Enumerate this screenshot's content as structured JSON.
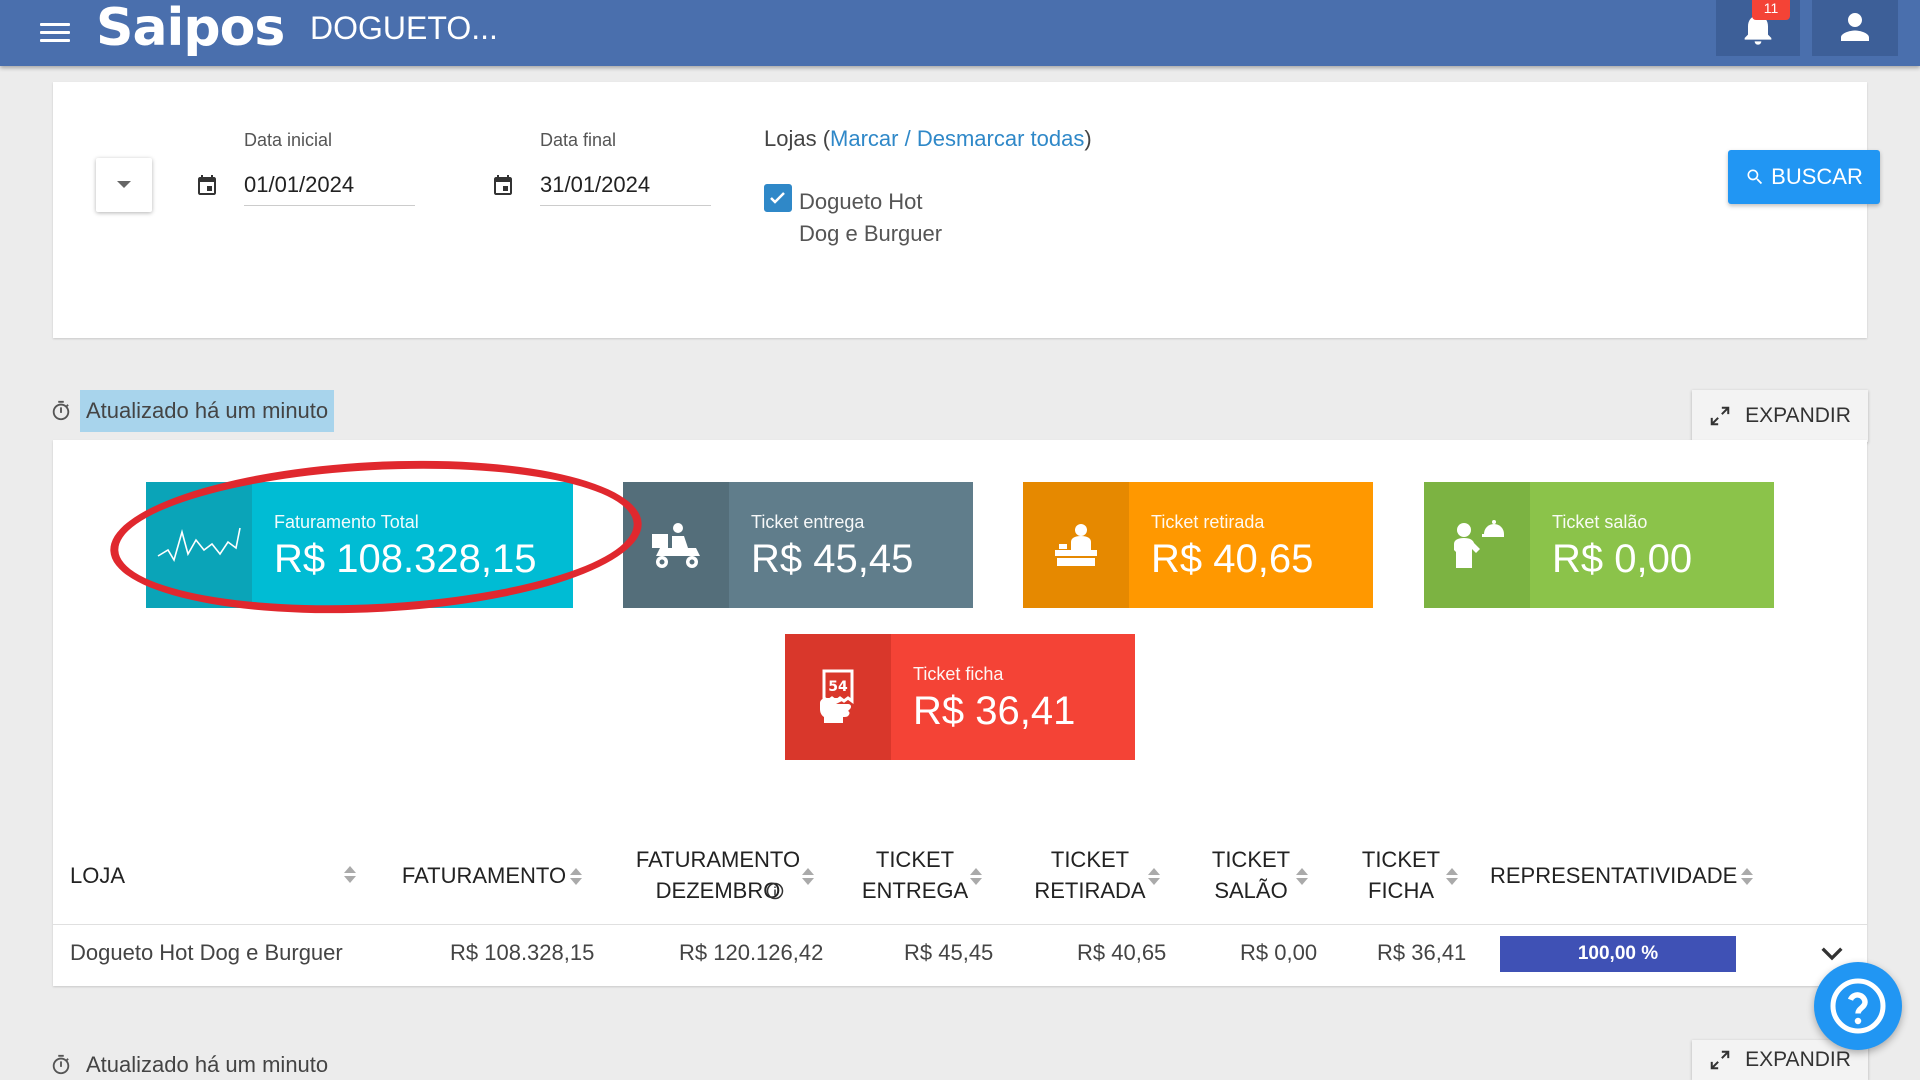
{
  "header": {
    "brand": "Saipos",
    "store_title": "DOGUETO...",
    "notification_count": "11"
  },
  "filters": {
    "date_start_label": "Data inicial",
    "date_start_value": "01/01/2024",
    "date_end_label": "Data final",
    "date_end_value": "31/01/2024",
    "stores_label": "Lojas (",
    "stores_toggle_link": "Marcar / Desmarcar todas",
    "stores_label_close": ")",
    "store_name": "Dogueto Hot Dog e Burguer",
    "store_checked": true,
    "search_button": "BUSCAR"
  },
  "section": {
    "updated_text": "Atualizado há um minuto",
    "expand_button": "EXPANDIR"
  },
  "kpis": [
    {
      "label": "Faturamento Total",
      "value": "R$ 108.328,15",
      "color": "#00bcd4",
      "icon_color": "#0aa4b8",
      "icon": "trend-line-icon"
    },
    {
      "label": "Ticket entrega",
      "value": "R$ 45,45",
      "color": "#607d8b",
      "icon_color": "#546e7a",
      "icon": "delivery-scooter-icon"
    },
    {
      "label": "Ticket retirada",
      "value": "R$ 40,65",
      "color": "#ff9800",
      "icon_color": "#e68900",
      "icon": "pickup-counter-icon"
    },
    {
      "label": "Ticket salão",
      "value": "R$ 0,00",
      "color": "#8bc34a",
      "icon_color": "#7cb342",
      "icon": "waiter-icon"
    },
    {
      "label": "Ticket ficha",
      "value": "R$ 36,41",
      "color": "#f44336",
      "icon_color": "#d9372b",
      "icon": "order-ticket-icon"
    }
  ],
  "table": {
    "columns": [
      "LOJA",
      "FATURAMENTO",
      "FATURAMENTO DEZEMBRO",
      "TICKET ENTREGA",
      "TICKET RETIRADA",
      "TICKET SALÃO",
      "TICKET FICHA",
      "REPRESENTATIVIDADE"
    ],
    "rows": [
      {
        "loja": "Dogueto Hot Dog e Burguer",
        "faturamento": "R$ 108.328,15",
        "faturamento_dezembro": "R$ 120.126,42",
        "ticket_entrega": "R$ 45,45",
        "ticket_retirada": "R$ 40,65",
        "ticket_salao": "R$ 0,00",
        "ticket_ficha": "R$ 36,41",
        "representatividade": "100,00 %"
      }
    ]
  },
  "section2": {
    "updated_text": "Atualizado há um minuto",
    "expand_button": "EXPANDIR"
  }
}
